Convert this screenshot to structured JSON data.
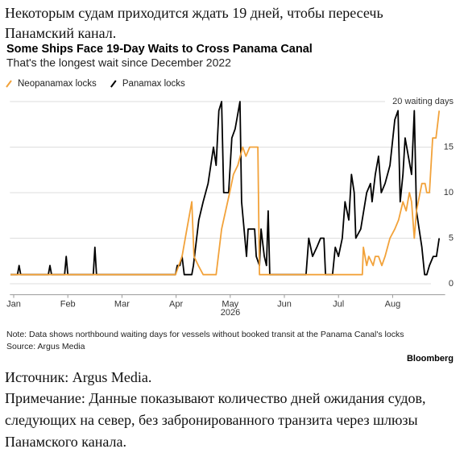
{
  "header": {
    "text": "Некоторым судам приходится ждать 19 дней, чтобы пересечь Панамский канал."
  },
  "chart_data": {
    "type": "line",
    "title": "Some Ships Face 19-Day Waits to Cross Panama Canal",
    "subtitle": "That's the longest wait since December 2022",
    "xlabel": "2026",
    "note": "Note: Data shows northbound waiting days for vessels without booked transit at the Panama Canal's locks",
    "source": "Source: Argus Media",
    "credit": "Bloomberg",
    "xlim": [
      0.93,
      8.97
    ],
    "xticks": [
      {
        "value": 1,
        "label": "Jan"
      },
      {
        "value": 2,
        "label": "Feb"
      },
      {
        "value": 3,
        "label": "Mar"
      },
      {
        "value": 4,
        "label": "Apr"
      },
      {
        "value": 5,
        "label": "May"
      },
      {
        "value": 6,
        "label": "Jun"
      },
      {
        "value": 7,
        "label": "Jul"
      },
      {
        "value": 8,
        "label": "Aug"
      }
    ],
    "ylim": [
      -1.2,
      20
    ],
    "yticks": [
      0,
      5,
      10,
      15,
      {
        "value": 20,
        "label": "20 waiting days"
      }
    ],
    "grid": true,
    "legend": "top-left",
    "series": [
      {
        "name": "Neopanamax locks",
        "color": "#f2a23a",
        "x": [
          0.94,
          3.99,
          4.11,
          4.2,
          4.29,
          4.33,
          4.41,
          4.5,
          4.74,
          4.84,
          4.99,
          5.06,
          5.14,
          5.23,
          5.29,
          5.36,
          5.51,
          5.54,
          7.44,
          7.46,
          7.52,
          7.56,
          7.64,
          7.68,
          7.74,
          7.8,
          7.86,
          7.95,
          8.04,
          8.11,
          8.19,
          8.25,
          8.31,
          8.35,
          8.4,
          8.44,
          8.54,
          8.6,
          8.63,
          8.68,
          8.74,
          8.8,
          8.84,
          8.86
        ],
        "values": [
          1,
          1,
          3,
          6,
          9,
          3,
          2,
          1,
          1,
          6,
          10,
          12,
          13,
          15,
          14,
          15,
          15,
          1,
          1,
          4,
          2,
          3,
          2,
          3,
          3,
          2,
          3,
          5,
          6,
          7,
          9,
          8,
          10,
          9,
          5,
          8,
          11,
          11,
          10,
          10,
          16,
          16,
          18,
          19
        ]
      },
      {
        "name": "Panamax locks",
        "color": "#000000",
        "x": [
          0.94,
          1.07,
          1.1,
          1.13,
          1.64,
          1.67,
          1.7,
          1.94,
          1.97,
          2.0,
          2.47,
          2.5,
          2.53,
          3.99,
          4.02,
          4.07,
          4.11,
          4.15,
          4.29,
          4.32,
          4.42,
          4.5,
          4.59,
          4.69,
          4.74,
          4.79,
          4.84,
          4.88,
          4.97,
          5.03,
          5.09,
          5.15,
          5.18,
          5.21,
          5.27,
          5.3,
          5.33,
          5.45,
          5.48,
          5.54,
          5.57,
          5.63,
          5.67,
          5.7,
          5.73,
          6.4,
          6.45,
          6.52,
          6.6,
          6.67,
          6.73,
          6.76,
          6.89,
          6.94,
          7.0,
          7.07,
          7.12,
          7.19,
          7.24,
          7.29,
          7.32,
          7.41,
          7.52,
          7.59,
          7.62,
          7.68,
          7.74,
          7.79,
          7.86,
          7.95,
          8.04,
          8.1,
          8.14,
          8.19,
          8.23,
          8.29,
          8.35,
          8.4,
          8.44,
          8.49,
          8.54,
          8.59,
          8.63,
          8.68,
          8.75,
          8.81,
          8.86
        ],
        "values": [
          1,
          1,
          2,
          1,
          1,
          2,
          1,
          1,
          3,
          1,
          1,
          4,
          1,
          1,
          2,
          2,
          3,
          1,
          1,
          2,
          7,
          9,
          11,
          15,
          13,
          19,
          20,
          10,
          10,
          16,
          17,
          19,
          20,
          9,
          5,
          3,
          6,
          6,
          3,
          2,
          6,
          3,
          2,
          8,
          1,
          1,
          5,
          3,
          4,
          5,
          5,
          1,
          1,
          4,
          3,
          5,
          9,
          7,
          12,
          10,
          5,
          6,
          10,
          11,
          9,
          12,
          14,
          10,
          11,
          13,
          18,
          19,
          9,
          12,
          16,
          14,
          12,
          19,
          8,
          6,
          4,
          1,
          1,
          2,
          3,
          3,
          5
        ]
      }
    ]
  },
  "footer": {
    "source": "Источник: Argus Media.",
    "note": "Примечание: Данные показывают количество дней ожидания судов, следующих на север, без забронированного транзита через шлюзы Панамского канала."
  }
}
